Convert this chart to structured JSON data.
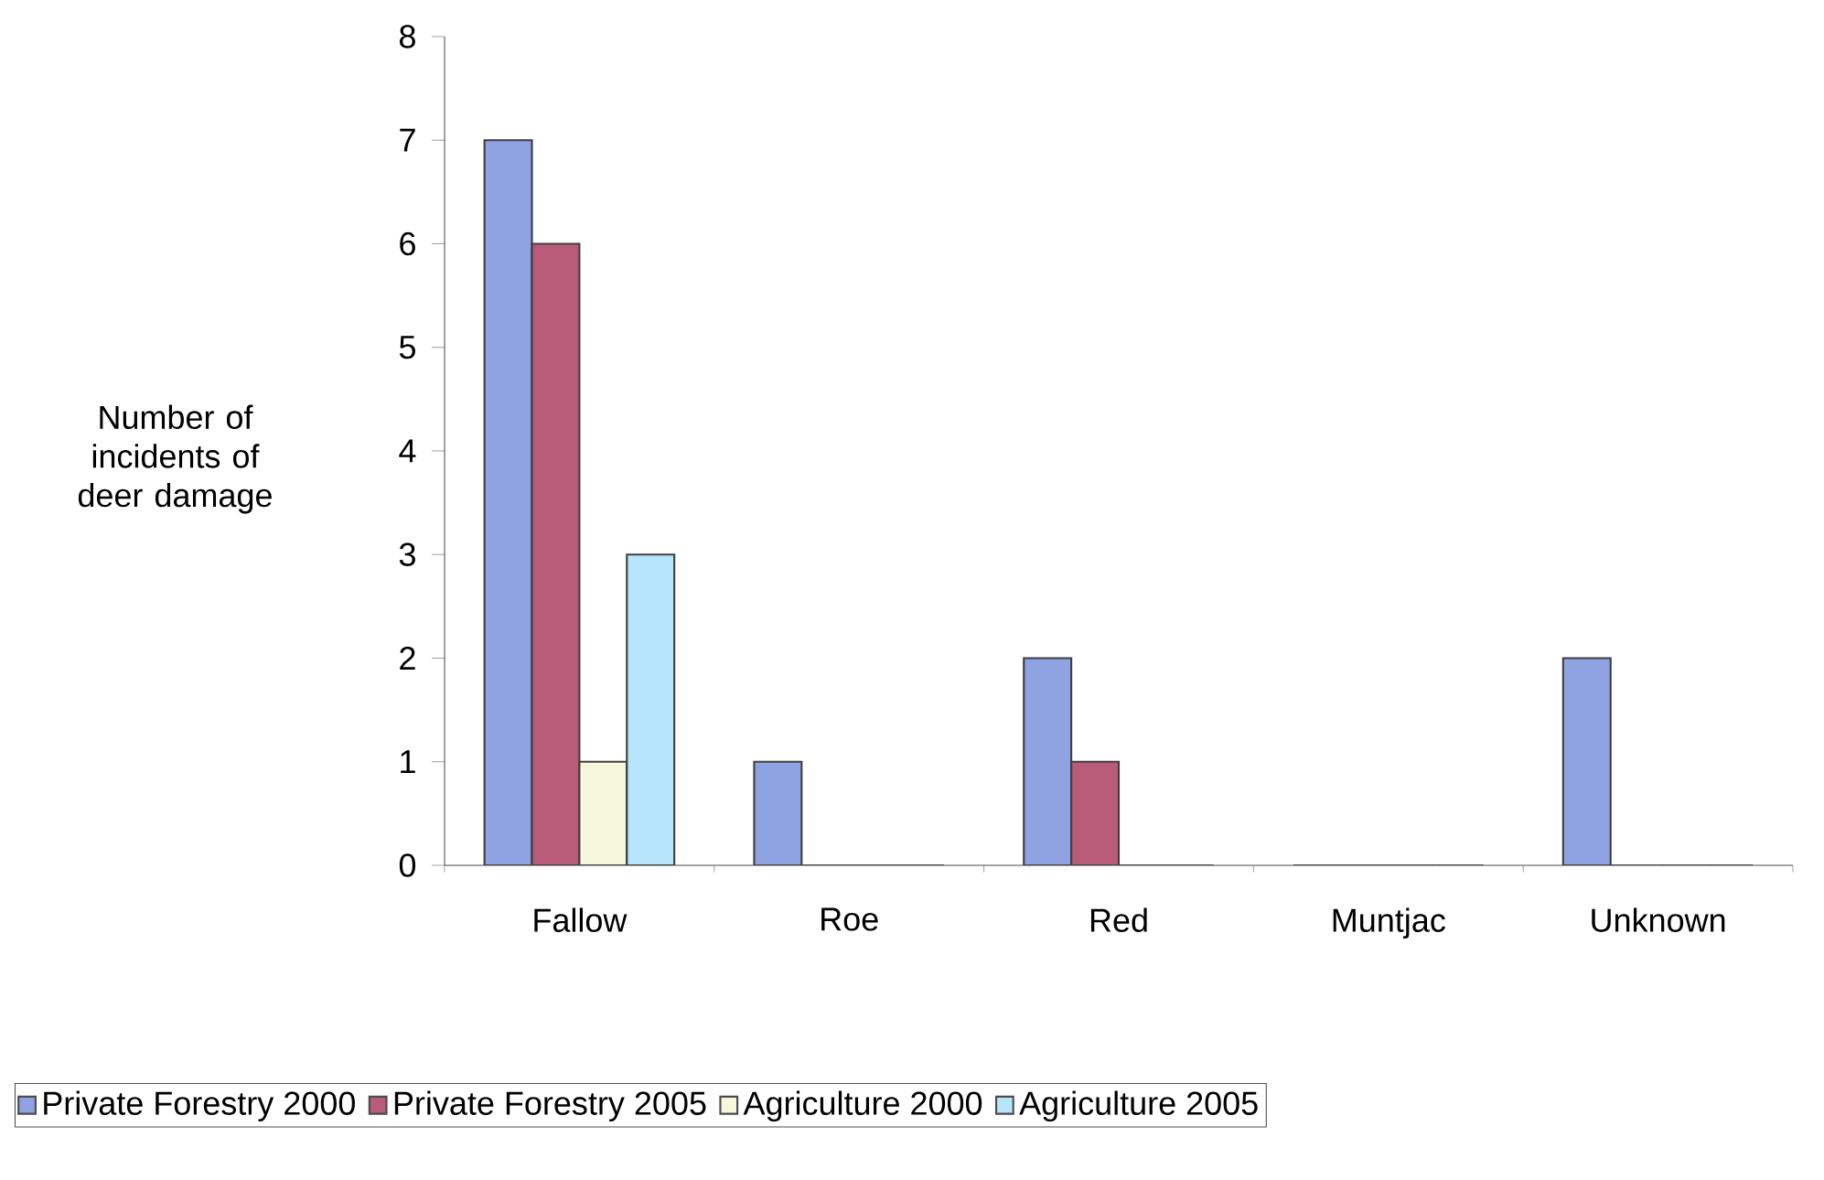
{
  "chart_data": {
    "type": "bar",
    "ylabel": "Number of incidents of deer damage",
    "categories": [
      "Fallow",
      "Roe",
      "Red",
      "Muntjac",
      "Unknown"
    ],
    "series": [
      {
        "name": "Private Forestry 2000",
        "color": "#8fa3e3",
        "values": [
          7,
          1,
          2,
          0,
          2
        ]
      },
      {
        "name": "Private Forestry 2005",
        "color": "#b85c7a",
        "values": [
          6,
          0,
          1,
          0,
          0
        ]
      },
      {
        "name": "Agriculture 2000",
        "color": "#f7f7dc",
        "values": [
          1,
          0,
          0,
          0,
          0
        ]
      },
      {
        "name": "Agriculture 2005",
        "color": "#b7e5fb",
        "values": [
          3,
          0,
          0,
          0,
          0
        ]
      }
    ],
    "ylim": [
      0,
      8
    ],
    "yticks": [
      0,
      1,
      2,
      3,
      4,
      5,
      6,
      7,
      8
    ],
    "legend": "bottom",
    "grid": false
  }
}
